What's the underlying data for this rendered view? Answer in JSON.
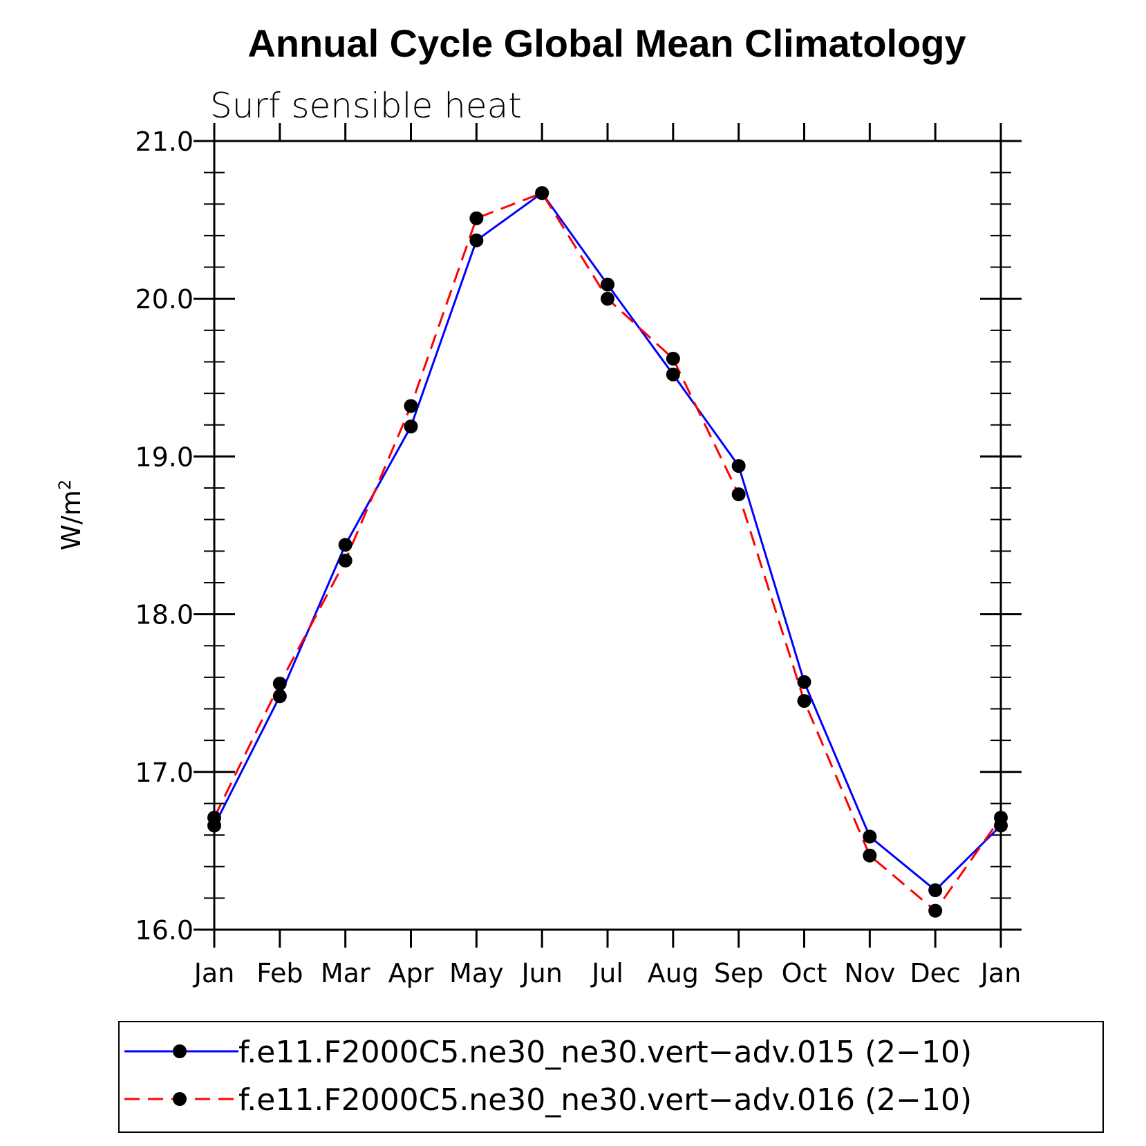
{
  "chart_data": {
    "type": "line",
    "title": "Annual Cycle Global Mean Climatology",
    "subtitle": "Surf sensible heat",
    "xlabel": "",
    "ylabel": "W/m",
    "ylabel_superscript": "2",
    "categories": [
      "Jan",
      "Feb",
      "Mar",
      "Apr",
      "May",
      "Jun",
      "Jul",
      "Aug",
      "Sep",
      "Oct",
      "Nov",
      "Dec",
      "Jan"
    ],
    "ylim": [
      16.0,
      21.0
    ],
    "yticks": [
      "16.0",
      "17.0",
      "18.0",
      "19.0",
      "20.0",
      "21.0"
    ],
    "series": [
      {
        "name": "f.e11.F2000C5.ne30_ne30.vert−adv.015 (2−10)",
        "color": "#0000ff",
        "style": "solid",
        "values": [
          16.66,
          17.48,
          18.44,
          19.19,
          20.37,
          20.67,
          20.09,
          19.52,
          18.94,
          17.57,
          16.59,
          16.25,
          16.66
        ]
      },
      {
        "name": "f.e11.F2000C5.ne30_ne30.vert−adv.016 (2−10)",
        "color": "#ff0000",
        "style": "dashed",
        "values": [
          16.71,
          17.56,
          18.34,
          19.32,
          20.51,
          20.67,
          20.0,
          19.62,
          18.76,
          17.45,
          16.47,
          16.12,
          16.71
        ]
      }
    ],
    "marker": "filled-circle",
    "marker_color": "#000000",
    "grid": false,
    "legend_position": "bottom"
  }
}
